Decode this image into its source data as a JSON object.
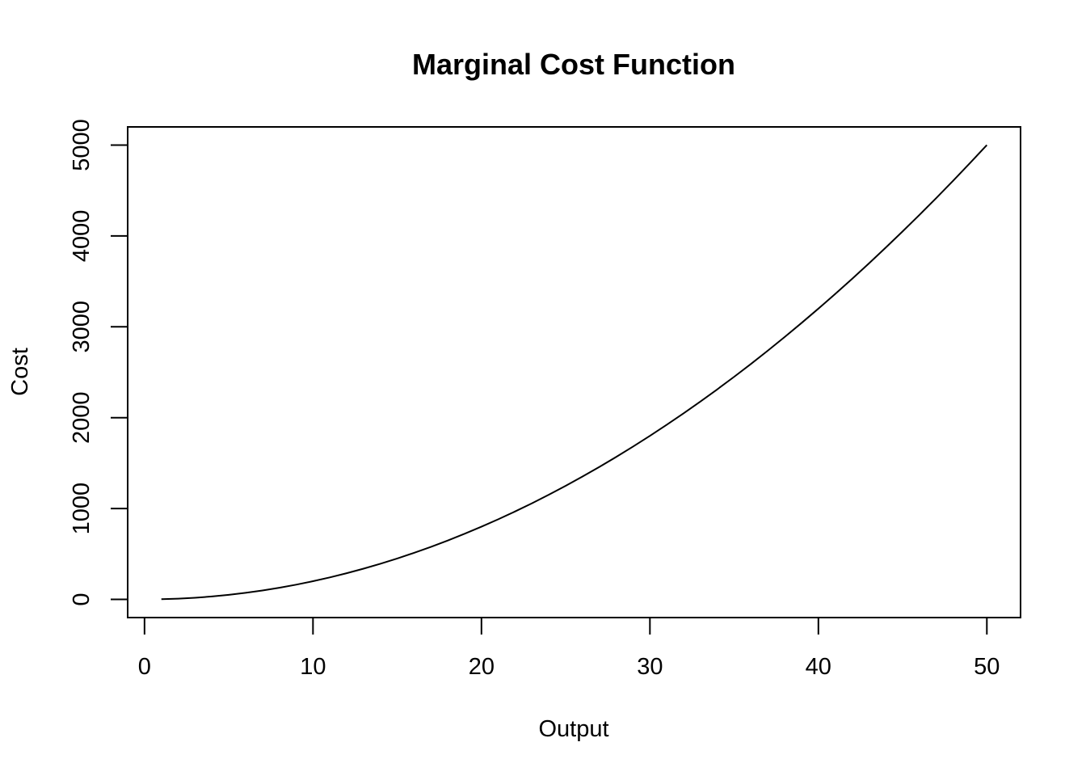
{
  "chart_data": {
    "type": "line",
    "title": "Marginal Cost Function",
    "xlabel": "Output",
    "ylabel": "Cost",
    "xlim": [
      -1,
      52
    ],
    "ylim": [
      -200,
      5200
    ],
    "x_ticks": [
      0,
      10,
      20,
      30,
      40,
      50
    ],
    "y_ticks": [
      0,
      1000,
      2000,
      3000,
      4000,
      5000
    ],
    "grid": false,
    "series": [
      {
        "color": "#000000",
        "x": [
          1,
          2,
          3,
          4,
          5,
          6,
          7,
          8,
          9,
          10,
          11,
          12,
          13,
          14,
          15,
          16,
          17,
          18,
          19,
          20,
          21,
          22,
          23,
          24,
          25,
          26,
          27,
          28,
          29,
          30,
          31,
          32,
          33,
          34,
          35,
          36,
          37,
          38,
          39,
          40,
          41,
          42,
          43,
          44,
          45,
          46,
          47,
          48,
          49,
          50
        ],
        "y": [
          2,
          8,
          18,
          32,
          50,
          72,
          98,
          128,
          162,
          200,
          242,
          288,
          338,
          392,
          450,
          512,
          578,
          648,
          722,
          800,
          882,
          968,
          1058,
          1152,
          1250,
          1352,
          1458,
          1568,
          1682,
          1800,
          1922,
          2048,
          2178,
          2312,
          2450,
          2592,
          2738,
          2888,
          3042,
          3200,
          3362,
          3528,
          3698,
          3872,
          4050,
          4232,
          4418,
          4608,
          4802,
          5000
        ]
      }
    ]
  }
}
